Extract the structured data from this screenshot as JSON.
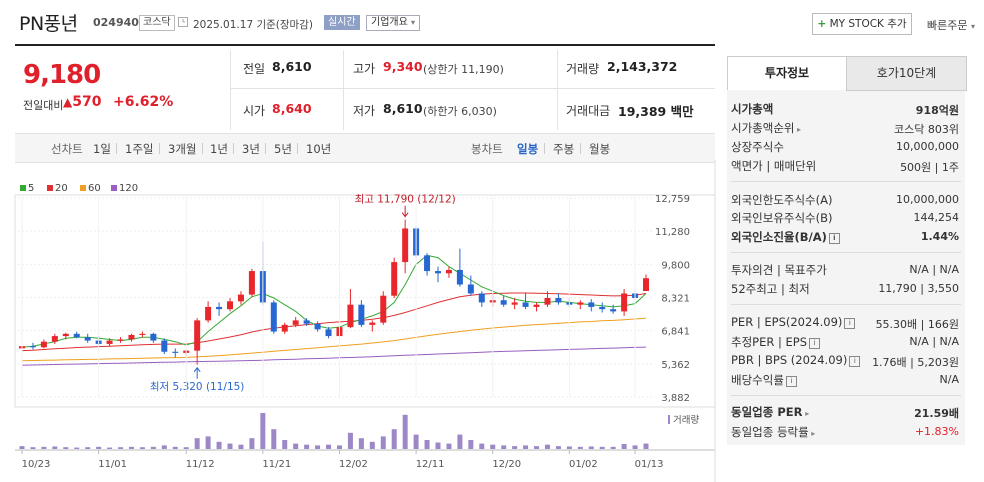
{
  "header": {
    "title": "PN풍년",
    "code": "024940",
    "market": "코스닥",
    "date": "2025.01.17 기준(장마감)",
    "realtime": "실시간",
    "corp_info": "기업개요",
    "mystock": "MY STOCK 추가",
    "mystock_plus": "+",
    "quick_order": "빠른주문"
  },
  "price": {
    "current": "9,180",
    "change_label": "전일대비",
    "change": "570",
    "change_pct": "+6.62%",
    "up_arrow": "▲"
  },
  "quote": {
    "prev_label": "전일",
    "prev": "8,610",
    "open_label": "시가",
    "open": "8,640",
    "high_label": "고가",
    "high": "9,340",
    "upper_limit": "(상한가 11,190)",
    "low_label": "저가",
    "low": "8,610",
    "lower_limit": "(하한가 6,030)",
    "volume_label": "거래량",
    "volume": "2,143,372",
    "amount_label": "거래대금",
    "amount": "19,389 백만"
  },
  "chart_tabs": {
    "line_label": "선차트",
    "line_periods": [
      "1일",
      "1주일",
      "3개월",
      "1년",
      "3년",
      "5년",
      "10년"
    ],
    "candle_label": "봉차트",
    "candle_periods": [
      "일봉",
      "주봉",
      "월봉"
    ],
    "active_candle": "일봉"
  },
  "legend": {
    "items": [
      {
        "label": "5",
        "color": "#33aa33"
      },
      {
        "label": "20",
        "color": "#e03030"
      },
      {
        "label": "60",
        "color": "#f0a020"
      },
      {
        "label": "120",
        "color": "#9a5fc0"
      }
    ],
    "volume_label": "거래량"
  },
  "chart_data": {
    "type": "candlestick",
    "y_ticks": [
      "12,759",
      "11,280",
      "9,800",
      "8,321",
      "6,841",
      "5,362",
      "3,882"
    ],
    "ylim": [
      3882,
      12759
    ],
    "x_ticks": [
      "10/23",
      "11/01",
      "11/12",
      "11/21",
      "12/02",
      "12/11",
      "12/20",
      "01/02",
      "01/13"
    ],
    "annotations": {
      "high": "최고 11,790 (12/12)",
      "low": "최저 5,320 (11/15)"
    },
    "candles": [
      {
        "o": 6050,
        "h": 6300,
        "l": 5950,
        "c": 6150
      },
      {
        "o": 6150,
        "h": 6300,
        "l": 6000,
        "c": 6100
      },
      {
        "o": 6100,
        "h": 6450,
        "l": 6050,
        "c": 6350
      },
      {
        "o": 6350,
        "h": 6700,
        "l": 6250,
        "c": 6600
      },
      {
        "o": 6600,
        "h": 6750,
        "l": 6450,
        "c": 6700
      },
      {
        "o": 6700,
        "h": 6800,
        "l": 6500,
        "c": 6550
      },
      {
        "o": 6550,
        "h": 6700,
        "l": 6300,
        "c": 6400
      },
      {
        "o": 6400,
        "h": 6600,
        "l": 6100,
        "c": 6250
      },
      {
        "o": 6250,
        "h": 6500,
        "l": 6150,
        "c": 6400
      },
      {
        "o": 6400,
        "h": 6550,
        "l": 6300,
        "c": 6450
      },
      {
        "o": 6450,
        "h": 6700,
        "l": 6350,
        "c": 6650
      },
      {
        "o": 6650,
        "h": 6800,
        "l": 6550,
        "c": 6700
      },
      {
        "o": 6700,
        "h": 6750,
        "l": 6300,
        "c": 6400
      },
      {
        "o": 6400,
        "h": 6500,
        "l": 5800,
        "c": 5900
      },
      {
        "o": 5900,
        "h": 6050,
        "l": 5650,
        "c": 5850
      },
      {
        "o": 5850,
        "h": 6000,
        "l": 5700,
        "c": 5950
      },
      {
        "o": 5950,
        "h": 7400,
        "l": 5320,
        "c": 7300
      },
      {
        "o": 7300,
        "h": 8150,
        "l": 7200,
        "c": 7900
      },
      {
        "o": 7900,
        "h": 8100,
        "l": 7500,
        "c": 7800
      },
      {
        "o": 7800,
        "h": 8300,
        "l": 7700,
        "c": 8150
      },
      {
        "o": 8150,
        "h": 8600,
        "l": 8000,
        "c": 8450
      },
      {
        "o": 8450,
        "h": 9600,
        "l": 8350,
        "c": 9500
      },
      {
        "o": 9500,
        "h": 10800,
        "l": 8000,
        "c": 8100
      },
      {
        "o": 8100,
        "h": 8200,
        "l": 6700,
        "c": 6800
      },
      {
        "o": 6800,
        "h": 7200,
        "l": 6700,
        "c": 7100
      },
      {
        "o": 7100,
        "h": 7450,
        "l": 7000,
        "c": 7300
      },
      {
        "o": 7300,
        "h": 7400,
        "l": 7050,
        "c": 7150
      },
      {
        "o": 7150,
        "h": 7250,
        "l": 6800,
        "c": 6900
      },
      {
        "o": 6900,
        "h": 7000,
        "l": 6500,
        "c": 6600
      },
      {
        "o": 6600,
        "h": 7100,
        "l": 6550,
        "c": 7000
      },
      {
        "o": 7000,
        "h": 8700,
        "l": 6950,
        "c": 8000
      },
      {
        "o": 8000,
        "h": 8200,
        "l": 7000,
        "c": 7100
      },
      {
        "o": 7100,
        "h": 7300,
        "l": 6800,
        "c": 7200
      },
      {
        "o": 7200,
        "h": 8600,
        "l": 7100,
        "c": 8400
      },
      {
        "o": 8400,
        "h": 10100,
        "l": 8300,
        "c": 9900
      },
      {
        "o": 9900,
        "h": 11790,
        "l": 9400,
        "c": 11400
      },
      {
        "o": 11400,
        "h": 11500,
        "l": 10100,
        "c": 10200
      },
      {
        "o": 10200,
        "h": 10300,
        "l": 9300,
        "c": 9500
      },
      {
        "o": 9500,
        "h": 9700,
        "l": 9000,
        "c": 9400
      },
      {
        "o": 9400,
        "h": 9700,
        "l": 9200,
        "c": 9550
      },
      {
        "o": 9550,
        "h": 10500,
        "l": 8800,
        "c": 8900
      },
      {
        "o": 8900,
        "h": 9300,
        "l": 8400,
        "c": 8500
      },
      {
        "o": 8500,
        "h": 8600,
        "l": 7900,
        "c": 8100
      },
      {
        "o": 8100,
        "h": 8500,
        "l": 7900,
        "c": 8200
      },
      {
        "o": 8200,
        "h": 8400,
        "l": 7900,
        "c": 8000
      },
      {
        "o": 8000,
        "h": 8300,
        "l": 7800,
        "c": 8100
      },
      {
        "o": 8100,
        "h": 8500,
        "l": 7800,
        "c": 7900
      },
      {
        "o": 7900,
        "h": 8100,
        "l": 7700,
        "c": 8000
      },
      {
        "o": 8000,
        "h": 8600,
        "l": 7900,
        "c": 8300
      },
      {
        "o": 8300,
        "h": 8500,
        "l": 8000,
        "c": 8100
      },
      {
        "o": 8100,
        "h": 8300,
        "l": 7900,
        "c": 8000
      },
      {
        "o": 8000,
        "h": 8200,
        "l": 7800,
        "c": 8100
      },
      {
        "o": 8100,
        "h": 8250,
        "l": 7700,
        "c": 7900
      },
      {
        "o": 7900,
        "h": 8100,
        "l": 7650,
        "c": 7800
      },
      {
        "o": 7800,
        "h": 8000,
        "l": 7600,
        "c": 7700
      },
      {
        "o": 7700,
        "h": 8700,
        "l": 7500,
        "c": 8500
      },
      {
        "o": 8500,
        "h": 8700,
        "l": 8200,
        "c": 8300
      },
      {
        "o": 8610,
        "h": 9340,
        "l": 8610,
        "c": 9180
      }
    ],
    "ma5": [
      6100,
      6150,
      6250,
      6350,
      6500,
      6550,
      6550,
      6500,
      6450,
      6400,
      6450,
      6550,
      6550,
      6450,
      6350,
      6200,
      6350,
      6800,
      7200,
      7600,
      7950,
      8350,
      8500,
      8300,
      8000,
      7700,
      7300,
      7050,
      6950,
      7000,
      7200,
      7350,
      7500,
      7700,
      8100,
      8900,
      9800,
      10200,
      10100,
      9700,
      9400,
      9100,
      8800,
      8600,
      8400,
      8250,
      8150,
      8100,
      8100,
      8150,
      8100,
      8050,
      8000,
      7950,
      7900,
      7950,
      8050,
      8500
    ],
    "ma20": [
      5950,
      5970,
      6000,
      6030,
      6060,
      6090,
      6110,
      6130,
      6150,
      6170,
      6190,
      6210,
      6230,
      6240,
      6240,
      6240,
      6300,
      6380,
      6470,
      6560,
      6660,
      6780,
      6880,
      6950,
      7010,
      7060,
      7110,
      7150,
      7200,
      7230,
      7260,
      7300,
      7350,
      7420,
      7520,
      7650,
      7800,
      7950,
      8100,
      8230,
      8350,
      8420,
      8470,
      8500,
      8510,
      8520,
      8520,
      8510,
      8500,
      8490,
      8470,
      8450,
      8430,
      8410,
      8390,
      8400,
      8420,
      8500
    ],
    "ma60": [
      5500,
      5510,
      5520,
      5530,
      5540,
      5550,
      5560,
      5570,
      5580,
      5590,
      5600,
      5610,
      5620,
      5630,
      5640,
      5650,
      5670,
      5700,
      5730,
      5760,
      5800,
      5840,
      5880,
      5920,
      5960,
      6000,
      6040,
      6080,
      6120,
      6160,
      6200,
      6240,
      6290,
      6340,
      6400,
      6470,
      6540,
      6610,
      6680,
      6740,
      6800,
      6860,
      6910,
      6960,
      7000,
      7040,
      7080,
      7110,
      7140,
      7170,
      7200,
      7230,
      7250,
      7280,
      7300,
      7330,
      7360,
      7400
    ],
    "ma120": [
      5300,
      5310,
      5320,
      5330,
      5340,
      5350,
      5360,
      5370,
      5380,
      5390,
      5400,
      5410,
      5420,
      5430,
      5440,
      5450,
      5460,
      5470,
      5480,
      5490,
      5500,
      5510,
      5525,
      5540,
      5555,
      5570,
      5585,
      5600,
      5615,
      5630,
      5645,
      5660,
      5680,
      5700,
      5720,
      5740,
      5760,
      5780,
      5800,
      5820,
      5840,
      5860,
      5880,
      5900,
      5915,
      5930,
      5945,
      5960,
      5975,
      5990,
      6005,
      6020,
      6035,
      6050,
      6065,
      6080,
      6095,
      6110
    ],
    "volume_rel": [
      0.08,
      0.05,
      0.06,
      0.07,
      0.05,
      0.04,
      0.05,
      0.06,
      0.04,
      0.05,
      0.06,
      0.05,
      0.06,
      0.1,
      0.06,
      0.05,
      0.3,
      0.35,
      0.2,
      0.15,
      0.12,
      0.3,
      1.0,
      0.55,
      0.25,
      0.15,
      0.12,
      0.1,
      0.12,
      0.1,
      0.45,
      0.3,
      0.2,
      0.35,
      0.55,
      0.95,
      0.4,
      0.25,
      0.18,
      0.15,
      0.4,
      0.25,
      0.15,
      0.12,
      0.1,
      0.08,
      0.1,
      0.08,
      0.12,
      0.08,
      0.07,
      0.06,
      0.07,
      0.06,
      0.06,
      0.14,
      0.1,
      0.15
    ]
  },
  "right_panel": {
    "tab_info": "투자정보",
    "tab_hoga": "호가10단계",
    "rows": [
      {
        "label": "시가총액",
        "value": "918억원"
      },
      {
        "label": "시가총액순위",
        "value": "코스닥 803위"
      },
      {
        "label": "상장주식수",
        "value": "10,000,000"
      },
      {
        "label": "액면가 | 매매단위",
        "value": "500원 | 1주"
      },
      {
        "label": "외국인한도주식수(A)",
        "value": "10,000,000"
      },
      {
        "label": "외국인보유주식수(B)",
        "value": "144,254"
      },
      {
        "label": "외국인소진율(B/A)",
        "value": "1.44%"
      },
      {
        "label": "투자의견 | 목표주가",
        "value": "N/A | N/A"
      },
      {
        "label": "52주최고 | 최저",
        "value": "11,790 | 3,550"
      },
      {
        "label": "PER | EPS(2024.09)",
        "value": "55.30배 | 166원"
      },
      {
        "label": "추정PER | EPS",
        "value": "N/A | N/A"
      },
      {
        "label": "PBR | BPS (2024.09)",
        "value": "1.76배 | 5,203원"
      },
      {
        "label": "배당수익률",
        "value": "N/A"
      },
      {
        "label": "동일업종 PER",
        "value": "21.59배"
      },
      {
        "label": "동일업종 등락률",
        "value": "+1.83%"
      }
    ],
    "info_icon": "i"
  }
}
